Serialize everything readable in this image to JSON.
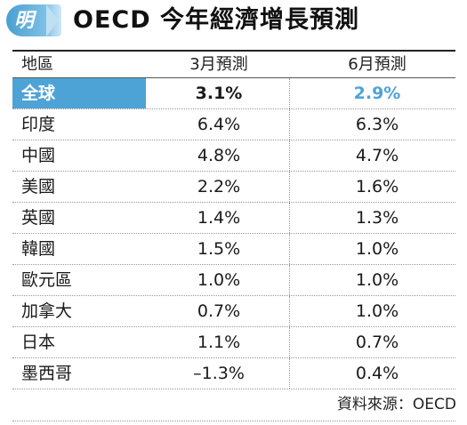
{
  "header": {
    "badge_char": "明",
    "title": "OECD 今年經濟增長預測"
  },
  "table": {
    "columns": [
      "地區",
      "3月預測",
      "6月預測"
    ],
    "global_row": {
      "region": "全球",
      "march": "3.1%",
      "june": "2.9%"
    },
    "rows": [
      {
        "region": "印度",
        "march": "6.4%",
        "june": "6.3%"
      },
      {
        "region": "中國",
        "march": "4.8%",
        "june": "4.7%"
      },
      {
        "region": "美國",
        "march": "2.2%",
        "june": "1.6%"
      },
      {
        "region": "英國",
        "march": "1.4%",
        "june": "1.3%"
      },
      {
        "region": "韓國",
        "march": "1.5%",
        "june": "1.0%"
      },
      {
        "region": "歐元區",
        "march": "1.0%",
        "june": "1.0%"
      },
      {
        "region": "加拿大",
        "march": "0.7%",
        "june": "1.0%"
      },
      {
        "region": "日本",
        "march": "1.1%",
        "june": "0.7%"
      },
      {
        "region": "墨西哥",
        "march": "–1.3%",
        "june": "0.4%"
      }
    ]
  },
  "source": "資料來源：OECD",
  "colors": {
    "accent": "#4ea3d6",
    "text": "#1a1a1a"
  }
}
